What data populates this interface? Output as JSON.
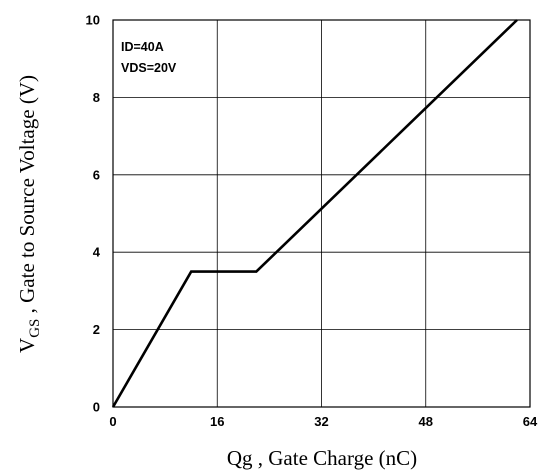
{
  "chart_data": {
    "type": "line",
    "title": "",
    "xlabel": "Qg , Gate Charge (nC)",
    "ylabel": {
      "prefix": "V",
      "subscript": "GS",
      "rest": " , Gate to Source Voltage (V)"
    },
    "xlim": [
      0,
      64
    ],
    "ylim": [
      0,
      10
    ],
    "x_ticks": [
      0,
      16,
      32,
      48,
      64
    ],
    "y_ticks": [
      0,
      2,
      4,
      6,
      8,
      10
    ],
    "grid": true,
    "annotations": [
      "ID=40A",
      "VDS=20V"
    ],
    "series": [
      {
        "x": [
          0,
          12,
          22,
          62
        ],
        "y": [
          0,
          3.5,
          3.5,
          10
        ]
      }
    ],
    "colors": {
      "line": "#000000",
      "grid": "#000000",
      "background": "#ffffff"
    }
  }
}
